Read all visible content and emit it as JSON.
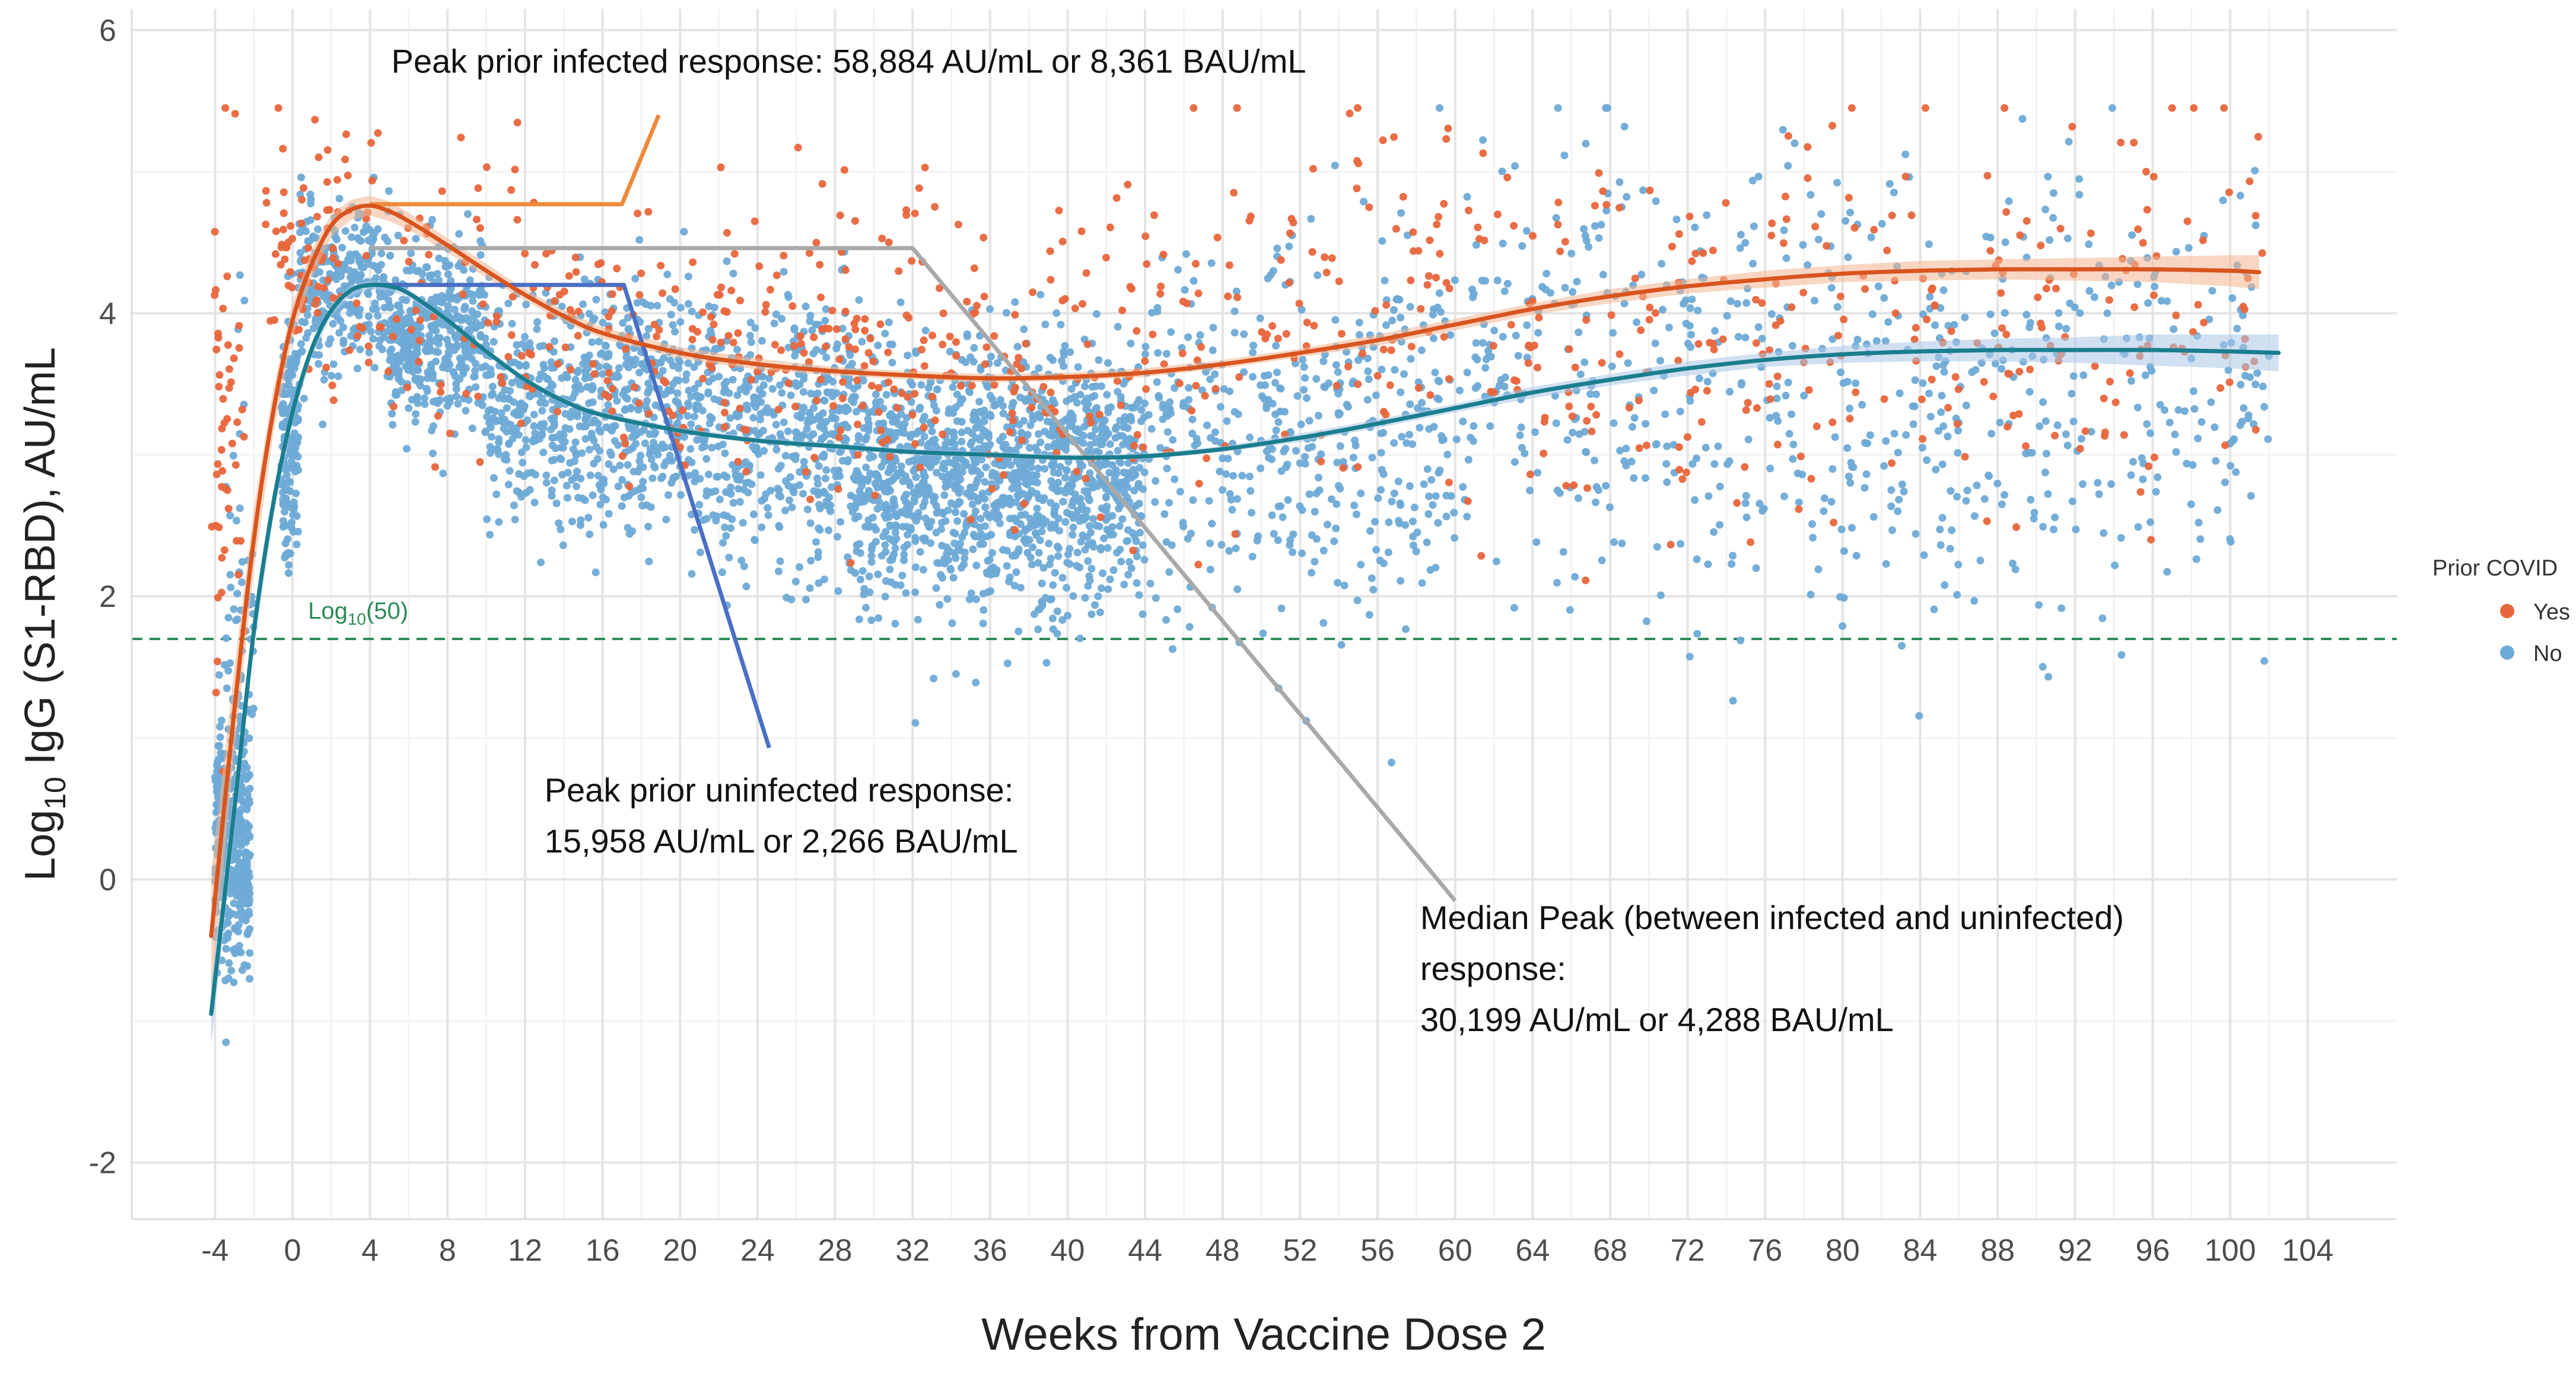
{
  "chart_data": {
    "type": "scatter",
    "title": "",
    "xlabel": "Weeks from Vaccine Dose 2",
    "ylabel_parts": {
      "prefix": "Log",
      "sub": "10",
      "suffix": " IgG (S1-RBD), AU/mL"
    },
    "xlim": [
      -8.3,
      108.6
    ],
    "ylim": [
      -2.4,
      6.15
    ],
    "x_ticks": [
      -4,
      0,
      4,
      8,
      12,
      16,
      20,
      24,
      28,
      32,
      36,
      40,
      44,
      48,
      52,
      56,
      60,
      64,
      68,
      72,
      76,
      80,
      84,
      88,
      92,
      96,
      100,
      104
    ],
    "y_ticks": [
      -2,
      0,
      2,
      4,
      6
    ],
    "grid": true,
    "legend": {
      "title": "Prior COVID",
      "placement": "right",
      "entries": [
        {
          "label": "Yes",
          "color": "#e8663c"
        },
        {
          "label": "No",
          "color": "#6eaad6"
        }
      ]
    },
    "reference_line": {
      "y": 1.699,
      "color": "#2e8b57",
      "label_parts": {
        "prefix": "Log",
        "sub": "10",
        "suffix": "(50)"
      }
    },
    "series": [
      {
        "name": "Yes",
        "color": "#e8663c",
        "fit_color": "#d9541e",
        "band_color": "#f3b58f",
        "point_groups": [
          {
            "x": [
              -4.2,
              -2.5
            ],
            "y_mean": 3.0,
            "y_sd": 0.9,
            "n": 50
          },
          {
            "x": [
              -1.5,
              4.0
            ],
            "y_mean": 4.4,
            "y_sd": 0.4,
            "n": 80
          },
          {
            "x": [
              4.0,
              16.0
            ],
            "y_mean": 4.1,
            "y_sd": 0.5,
            "n": 90
          },
          {
            "x": [
              16.0,
              45.0
            ],
            "y_mean": 3.75,
            "y_sd": 0.55,
            "n": 300
          },
          {
            "x": [
              45.0,
              102.0
            ],
            "y_mean": 3.9,
            "y_sd": 0.7,
            "n": 380
          }
        ],
        "fit": {
          "x": [
            -4.2,
            -3,
            -2,
            -1,
            0,
            1,
            2,
            3,
            4,
            5,
            6,
            8,
            10,
            12,
            14,
            16,
            20,
            24,
            28,
            32,
            36,
            40,
            44,
            48,
            52,
            56,
            60,
            64,
            68,
            72,
            76,
            80,
            84,
            88,
            92,
            96,
            100,
            101.5
          ],
          "y": [
            -0.4,
            1.2,
            2.4,
            3.3,
            3.95,
            4.35,
            4.62,
            4.73,
            4.76,
            4.72,
            4.65,
            4.48,
            4.3,
            4.13,
            3.98,
            3.86,
            3.72,
            3.64,
            3.59,
            3.56,
            3.54,
            3.55,
            3.58,
            3.64,
            3.72,
            3.81,
            3.92,
            4.03,
            4.12,
            4.19,
            4.24,
            4.28,
            4.3,
            4.31,
            4.31,
            4.31,
            4.3,
            4.29
          ],
          "band_halfwidth": [
            0.45,
            0.3,
            0.22,
            0.16,
            0.12,
            0.1,
            0.08,
            0.07,
            0.07,
            0.07,
            0.06,
            0.05,
            0.05,
            0.04,
            0.04,
            0.04,
            0.04,
            0.04,
            0.03,
            0.03,
            0.03,
            0.03,
            0.03,
            0.03,
            0.03,
            0.04,
            0.04,
            0.04,
            0.05,
            0.05,
            0.06,
            0.06,
            0.07,
            0.07,
            0.08,
            0.09,
            0.11,
            0.12
          ]
        }
      },
      {
        "name": "No",
        "color": "#6eaad6",
        "fit_color": "#1a7e8f",
        "band_color": "#a9c6e6",
        "point_groups": [
          {
            "x": [
              -4.0,
              -2.2
            ],
            "y_mean": 0.3,
            "y_sd": 0.45,
            "n": 380
          },
          {
            "x": [
              -3.5,
              -2.0
            ],
            "y_mean": 1.8,
            "y_sd": 0.9,
            "n": 60
          },
          {
            "x": [
              -0.6,
              0.3
            ],
            "y_mean": 3.1,
            "y_sd": 0.45,
            "n": 170
          },
          {
            "x": [
              0.3,
              5.0
            ],
            "y_mean": 4.2,
            "y_sd": 0.3,
            "n": 280
          },
          {
            "x": [
              5.0,
              10.0
            ],
            "y_mean": 3.85,
            "y_sd": 0.3,
            "n": 420
          },
          {
            "x": [
              10.0,
              20.0
            ],
            "y_mean": 3.35,
            "y_sd": 0.4,
            "n": 600
          },
          {
            "x": [
              20.0,
              29.0
            ],
            "y_mean": 3.2,
            "y_sd": 0.45,
            "n": 520
          },
          {
            "x": [
              29.0,
              44.0
            ],
            "y_mean": 2.85,
            "y_sd": 0.45,
            "n": 1300
          },
          {
            "x": [
              44.0,
              60.0
            ],
            "y_mean": 3.15,
            "y_sd": 0.65,
            "n": 420
          },
          {
            "x": [
              60.0,
              102.0
            ],
            "y_mean": 3.5,
            "y_sd": 0.8,
            "n": 650
          }
        ],
        "fit": {
          "x": [
            -4.2,
            -3,
            -2,
            -1,
            0,
            1,
            2,
            3,
            4,
            5,
            6,
            8,
            10,
            12,
            14,
            16,
            20,
            24,
            28,
            32,
            36,
            40,
            44,
            48,
            52,
            56,
            60,
            64,
            68,
            72,
            76,
            80,
            84,
            88,
            92,
            96,
            100,
            102.5
          ],
          "y": [
            -0.95,
            0.5,
            1.75,
            2.65,
            3.3,
            3.75,
            4.02,
            4.16,
            4.2,
            4.19,
            4.14,
            3.95,
            3.73,
            3.53,
            3.38,
            3.28,
            3.17,
            3.1,
            3.06,
            3.02,
            3.0,
            2.98,
            2.99,
            3.04,
            3.12,
            3.22,
            3.33,
            3.44,
            3.53,
            3.61,
            3.67,
            3.71,
            3.73,
            3.74,
            3.74,
            3.74,
            3.73,
            3.72
          ],
          "band_halfwidth": [
            0.22,
            0.16,
            0.12,
            0.09,
            0.07,
            0.05,
            0.04,
            0.04,
            0.03,
            0.03,
            0.03,
            0.02,
            0.02,
            0.02,
            0.02,
            0.02,
            0.02,
            0.02,
            0.02,
            0.02,
            0.02,
            0.02,
            0.02,
            0.02,
            0.03,
            0.03,
            0.03,
            0.04,
            0.04,
            0.05,
            0.05,
            0.06,
            0.07,
            0.08,
            0.09,
            0.11,
            0.12,
            0.13
          ]
        }
      }
    ],
    "annotations": [
      {
        "id": "infected",
        "color": "#ec8a3c",
        "lines": [
          "Peak prior infected response: 58,884 AU/mL or 8,361 BAU/mL"
        ],
        "text_anchor": [
          5.1,
          5.7
        ],
        "leader": [
          [
            4.0,
            4.77
          ],
          [
            17.0,
            4.77
          ],
          [
            18.9,
            5.4
          ]
        ]
      },
      {
        "id": "uninfected",
        "color": "#4a6fc4",
        "lines": [
          "Peak prior uninfected response:",
          "15,958 AU/mL or 2,266 BAU/mL"
        ],
        "text_anchor": [
          13.0,
          0.55
        ],
        "leader": [
          [
            4.0,
            4.2
          ],
          [
            17.1,
            4.2
          ],
          [
            24.6,
            0.93
          ]
        ]
      },
      {
        "id": "median",
        "color": "#a9a9a9",
        "lines": [
          "Median Peak (between infected and uninfected)",
          "response:",
          "30,199 AU/mL or 4,288 BAU/mL"
        ],
        "text_anchor": [
          58.2,
          -0.35
        ],
        "leader": [
          [
            4.0,
            4.46
          ],
          [
            32.0,
            4.46
          ],
          [
            60.0,
            -0.15
          ]
        ]
      }
    ]
  }
}
